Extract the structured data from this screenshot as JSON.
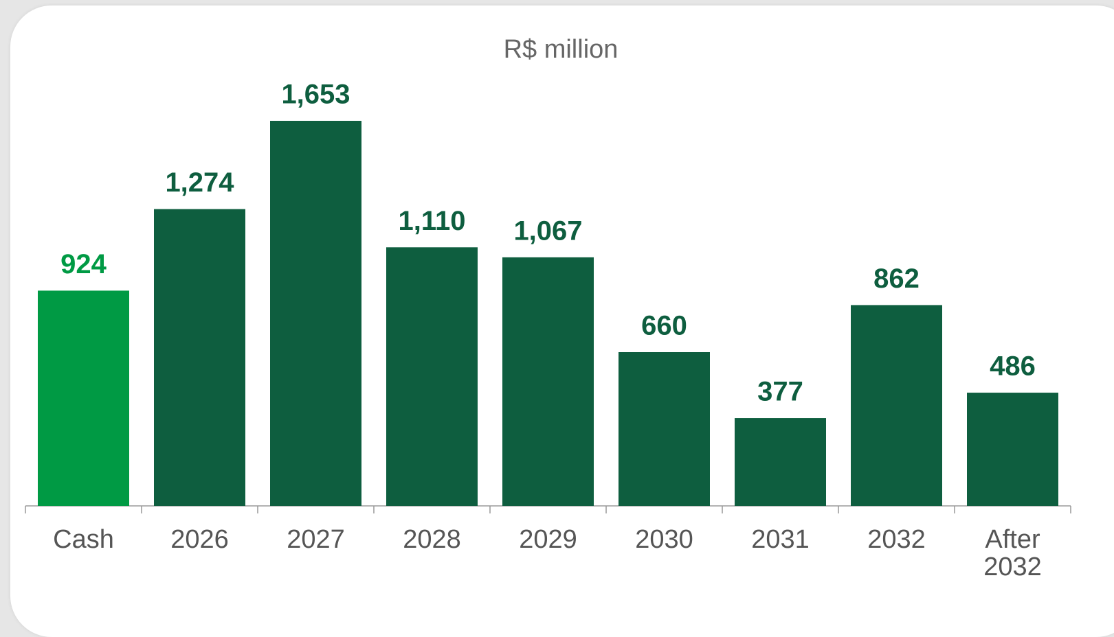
{
  "chart_data": {
    "type": "bar",
    "title": "R$ million",
    "categories": [
      "Cash",
      "2026",
      "2027",
      "2028",
      "2029",
      "2030",
      "2031",
      "2032",
      "After 2032"
    ],
    "values": [
      924,
      1274,
      1653,
      1110,
      1067,
      660,
      377,
      862,
      486
    ],
    "value_labels": [
      "924",
      "1,274",
      "1,653",
      "1,110",
      "1,067",
      "660",
      "377",
      "862",
      "486"
    ],
    "colors": [
      "#009a44",
      "#0e5e3f",
      "#0e5e3f",
      "#0e5e3f",
      "#0e5e3f",
      "#0e5e3f",
      "#0e5e3f",
      "#0e5e3f",
      "#0e5e3f"
    ]
  }
}
